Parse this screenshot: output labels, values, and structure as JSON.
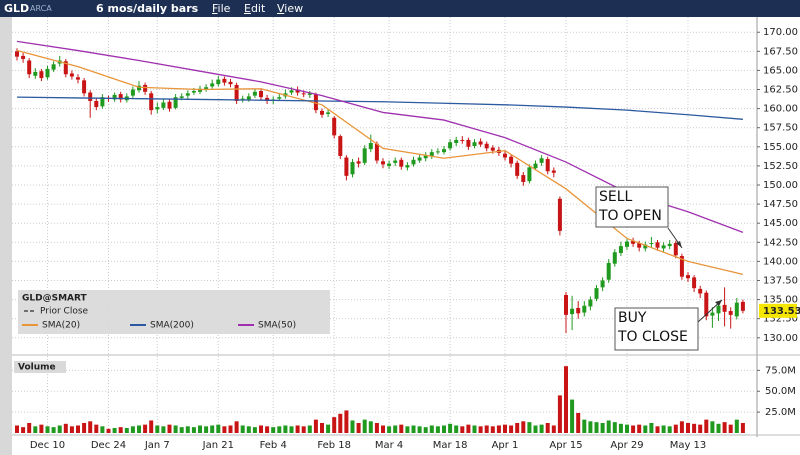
{
  "toolbar": {
    "symbol": "GLD",
    "exchange": "ARCA",
    "period": "6 mos/daily bars",
    "menu": [
      "File",
      "Edit",
      "View"
    ]
  },
  "chart_data": {
    "type": "candlestick",
    "legend_title": "GLD@SMART",
    "prior_close_label": "Prior Close",
    "volume_label": "Volume",
    "categories": [
      null,
      null,
      null,
      null,
      null,
      "Dec 10",
      null,
      null,
      null,
      null,
      null,
      null,
      null,
      null,
      null,
      "Dec 24",
      null,
      null,
      null,
      null,
      null,
      null,
      null,
      "Jan 7",
      null,
      null,
      null,
      null,
      null,
      null,
      null,
      null,
      null,
      "Jan 21",
      null,
      null,
      null,
      null,
      null,
      null,
      null,
      null,
      "Feb 4",
      null,
      null,
      null,
      null,
      null,
      null,
      null,
      null,
      null,
      "Feb 18",
      null,
      null,
      null,
      null,
      null,
      null,
      null,
      null,
      "Mar 4",
      null,
      null,
      null,
      null,
      null,
      null,
      null,
      null,
      null,
      "Mar 18",
      null,
      null,
      null,
      null,
      null,
      null,
      null,
      null,
      "Apr 1",
      null,
      null,
      null,
      null,
      null,
      null,
      null,
      null,
      null,
      "Apr 15",
      null,
      null,
      null,
      null,
      null,
      null,
      null,
      null,
      null,
      "Apr 29",
      null,
      null,
      null,
      null,
      null,
      null,
      null,
      null,
      null,
      "May 13",
      null,
      null,
      null,
      null,
      null,
      null,
      null,
      null,
      null
    ],
    "open": [
      167.5,
      166.9,
      166.3,
      164.3,
      164.9,
      164.1,
      165.1,
      165.9,
      166.2,
      164.6,
      164.1,
      163.7,
      162.1,
      161.0,
      160.3,
      161.4,
      161.2,
      161.9,
      161.1,
      161.7,
      162.4,
      163.1,
      162.0,
      159.9,
      160.1,
      160.9,
      160.1,
      161.4,
      161.7,
      162.1,
      162.2,
      162.5,
      162.9,
      163.2,
      163.9,
      163.5,
      163.1,
      161.1,
      161.2,
      161.7,
      162.3,
      161.4,
      161.0,
      161.3,
      161.6,
      162.1,
      162.5,
      162.0,
      161.8,
      161.9,
      159.7,
      159.3,
      158.8,
      156.4,
      153.6,
      151.4,
      153.1,
      152.9,
      154.7,
      155.4,
      153.1,
      152.5,
      152.9,
      153.3,
      152.3,
      152.7,
      153.2,
      153.5,
      153.8,
      154.4,
      154.3,
      154.8,
      155.5,
      155.9,
      155.9,
      155.1,
      155.7,
      155.4,
      154.9,
      154.6,
      154.1,
      153.7,
      152.9,
      151.3,
      150.5,
      152.2,
      152.9,
      153.4,
      151.9,
      148.2,
      135.6,
      133.1,
      133.9,
      133.3,
      134.1,
      135.1,
      136.6,
      137.6,
      139.7,
      141.1,
      141.9,
      142.7,
      142.4,
      141.7,
      142.3,
      142.5,
      141.7,
      142.0,
      142.4,
      140.7,
      138.2,
      137.9,
      136.4,
      135.9,
      132.9,
      133.2,
      134.3,
      133.5,
      132.8,
      134.7
    ],
    "high": [
      167.9,
      167.3,
      166.6,
      165.3,
      165.2,
      165.6,
      166.2,
      166.9,
      166.5,
      165.0,
      164.5,
      164.0,
      162.4,
      161.4,
      161.9,
      161.7,
      162.1,
      162.2,
      162.0,
      162.9,
      163.6,
      163.4,
      162.3,
      160.8,
      161.2,
      161.3,
      161.9,
      162.0,
      162.4,
      162.7,
      163.0,
      163.2,
      163.8,
      164.3,
      164.2,
      163.9,
      163.4,
      161.7,
      162.0,
      162.6,
      162.6,
      161.8,
      161.6,
      162.0,
      162.5,
      162.8,
      162.9,
      162.4,
      162.3,
      162.1,
      160.0,
      159.9,
      159.0,
      156.6,
      153.9,
      153.4,
      153.6,
      155.2,
      156.6,
      155.7,
      153.5,
      153.2,
      153.6,
      153.6,
      153.0,
      153.7,
      154.0,
      154.3,
      154.7,
      154.8,
      155.1,
      156.0,
      156.3,
      156.4,
      156.2,
      156.0,
      156.1,
      155.7,
      155.2,
      155.0,
      154.4,
      154.0,
      153.2,
      151.7,
      152.7,
      153.2,
      153.9,
      153.7,
      152.3,
      148.5,
      136.0,
      135.5,
      134.8,
      134.8,
      135.4,
      136.9,
      137.9,
      140.3,
      141.6,
      142.6,
      143.0,
      143.1,
      142.7,
      142.6,
      143.2,
      142.8,
      142.5,
      142.8,
      142.7,
      141.0,
      138.6,
      138.2,
      136.8,
      136.2,
      134.0,
      134.6,
      136.6,
      134.0,
      135.2,
      135.0
    ],
    "low": [
      166.3,
      166.0,
      164.0,
      163.9,
      163.6,
      163.8,
      164.8,
      165.5,
      164.1,
      163.8,
      163.3,
      161.6,
      158.8,
      159.8,
      160.0,
      160.9,
      160.9,
      160.8,
      160.8,
      161.4,
      162.1,
      161.8,
      159.2,
      159.4,
      159.8,
      159.6,
      159.9,
      161.1,
      161.3,
      161.8,
      161.9,
      162.2,
      162.6,
      162.9,
      163.0,
      162.8,
      160.6,
      160.8,
      160.9,
      161.4,
      161.1,
      160.6,
      160.6,
      161.0,
      161.3,
      161.8,
      161.7,
      161.5,
      161.4,
      159.4,
      158.8,
      158.9,
      156.1,
      153.4,
      150.6,
      151.0,
      152.3,
      152.6,
      154.3,
      152.8,
      152.2,
      152.1,
      152.5,
      152.0,
      151.9,
      152.4,
      152.9,
      153.1,
      153.4,
      154.0,
      154.0,
      154.5,
      155.1,
      155.4,
      154.6,
      154.8,
      155.0,
      154.4,
      154.1,
      153.8,
      153.2,
      152.3,
      150.8,
      149.9,
      150.2,
      151.9,
      152.5,
      151.4,
      151.0,
      143.4,
      130.6,
      131.0,
      132.5,
      132.8,
      133.6,
      134.8,
      136.1,
      137.2,
      139.3,
      140.7,
      141.5,
      141.9,
      141.3,
      141.3,
      141.8,
      141.4,
      141.3,
      141.6,
      140.4,
      137.6,
      137.3,
      136.0,
      135.2,
      132.3,
      131.3,
      132.2,
      131.5,
      131.2,
      132.4,
      133.2
    ],
    "close": [
      166.8,
      166.5,
      164.5,
      164.8,
      164.0,
      165.2,
      165.8,
      166.3,
      164.5,
      164.2,
      163.8,
      162.0,
      161.0,
      160.2,
      161.5,
      161.3,
      161.8,
      161.2,
      161.6,
      162.5,
      163.0,
      162.2,
      159.8,
      160.2,
      160.8,
      160.0,
      161.5,
      161.6,
      162.0,
      162.3,
      162.6,
      162.8,
      163.3,
      163.8,
      163.4,
      163.2,
      161.0,
      161.3,
      161.6,
      162.2,
      161.5,
      161.0,
      161.2,
      161.5,
      162.0,
      162.4,
      162.1,
      161.9,
      162.0,
      159.8,
      159.2,
      159.5,
      156.5,
      153.8,
      151.2,
      153.0,
      152.8,
      154.8,
      155.5,
      153.2,
      152.7,
      152.8,
      153.2,
      152.4,
      152.6,
      153.3,
      153.6,
      153.9,
      154.3,
      154.4,
      154.7,
      155.6,
      155.9,
      155.8,
      155.0,
      155.6,
      155.3,
      154.8,
      154.5,
      154.2,
      153.6,
      152.8,
      151.2,
      150.4,
      152.3,
      152.8,
      153.5,
      151.8,
      151.6,
      144.0,
      133.0,
      133.8,
      133.2,
      134.2,
      135.0,
      136.5,
      137.5,
      139.8,
      141.2,
      142.0,
      142.6,
      142.3,
      141.8,
      142.2,
      142.4,
      141.8,
      142.1,
      142.3,
      140.8,
      138.0,
      137.8,
      136.5,
      135.8,
      132.8,
      133.3,
      134.2,
      133.4,
      133.0,
      134.6,
      133.53
    ],
    "volume": [
      9,
      7,
      12,
      8,
      10,
      8,
      7,
      9,
      11,
      8,
      9,
      12,
      14,
      10,
      8,
      5,
      6,
      7,
      6,
      8,
      9,
      10,
      15,
      9,
      8,
      10,
      9,
      7,
      8,
      7,
      9,
      8,
      9,
      10,
      8,
      9,
      14,
      9,
      8,
      7,
      9,
      8,
      7,
      8,
      9,
      8,
      9,
      8,
      9,
      16,
      12,
      10,
      19,
      23,
      27,
      15,
      12,
      16,
      14,
      12,
      9,
      8,
      9,
      10,
      8,
      9,
      8,
      7,
      9,
      8,
      9,
      11,
      9,
      8,
      10,
      9,
      8,
      9,
      8,
      9,
      10,
      9,
      12,
      14,
      13,
      9,
      10,
      12,
      9,
      45,
      80,
      40,
      24,
      16,
      14,
      13,
      12,
      15,
      13,
      11,
      10,
      9,
      10,
      9,
      12,
      8,
      9,
      8,
      10,
      14,
      12,
      11,
      10,
      16,
      14,
      11,
      13,
      10,
      16,
      12
    ],
    "up_color": "#1f9a1f",
    "down_color": "#c81414",
    "series": [
      {
        "name": "SMA(20)",
        "color": "#e8953a",
        "x": [
          0,
          10,
          20,
          30,
          40,
          50,
          60,
          70,
          80,
          90,
          100,
          110,
          119
        ],
        "values": [
          167.6,
          165.5,
          162.8,
          162.5,
          162.6,
          160.5,
          154.8,
          153.5,
          154.5,
          149.5,
          143.0,
          140.0,
          138.3
        ]
      },
      {
        "name": "SMA(200)",
        "color": "#2c5aa0",
        "x": [
          0,
          10,
          20,
          30,
          40,
          50,
          60,
          70,
          80,
          90,
          100,
          110,
          119
        ],
        "values": [
          161.5,
          161.4,
          161.3,
          161.2,
          161.1,
          161.0,
          160.9,
          160.7,
          160.5,
          160.2,
          159.8,
          159.2,
          158.6
        ]
      },
      {
        "name": "SMA(50)",
        "color": "#a030b0",
        "x": [
          0,
          10,
          20,
          30,
          40,
          50,
          60,
          70,
          80,
          90,
          100,
          110,
          119
        ],
        "values": [
          168.8,
          167.6,
          166.3,
          164.9,
          163.5,
          161.7,
          159.5,
          158.5,
          156.2,
          153.0,
          149.0,
          146.5,
          143.8
        ]
      }
    ],
    "ylim": [
      128.4,
      171.6
    ],
    "yticks": [
      {
        "value": 130,
        "label": "130.00"
      },
      {
        "value": 132.5,
        "label": "132.50"
      },
      {
        "value": 135,
        "label": "135.00"
      },
      {
        "value": 137.5,
        "label": "137.50"
      },
      {
        "value": 140,
        "label": "140.00"
      },
      {
        "value": 142.5,
        "label": "142.50"
      },
      {
        "value": 145,
        "label": "145.00"
      },
      {
        "value": 147.5,
        "label": "147.50"
      },
      {
        "value": 150,
        "label": "150.00"
      },
      {
        "value": 152.5,
        "label": "152.50"
      },
      {
        "value": 155,
        "label": "155.00"
      },
      {
        "value": 157.5,
        "label": "157.50"
      },
      {
        "value": 160,
        "label": "160.00"
      },
      {
        "value": 162.5,
        "label": "162.50"
      },
      {
        "value": 165,
        "label": "165.00"
      },
      {
        "value": 167.5,
        "label": "167.50"
      },
      {
        "value": 170,
        "label": "170.00"
      }
    ],
    "y2lim": [
      0,
      85
    ],
    "y2ticks": [
      {
        "value": 25,
        "label": "25.0M"
      },
      {
        "value": 50,
        "label": "50.0M"
      },
      {
        "value": 75,
        "label": "75.0M"
      }
    ],
    "grid": true,
    "annotations": [
      {
        "lines": [
          "SELL",
          "TO OPEN"
        ]
      },
      {
        "lines": [
          "BUY",
          "TO CLOSE"
        ]
      }
    ]
  }
}
